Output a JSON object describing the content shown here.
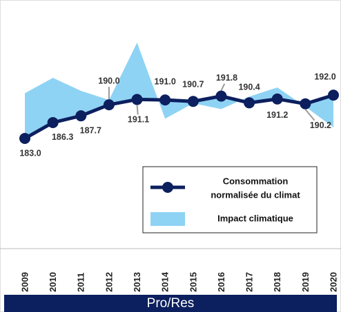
{
  "chart_data": {
    "type": "line",
    "caption": "Pro/Res",
    "categories": [
      "2009",
      "2010",
      "2011",
      "2012",
      "2013",
      "2014",
      "2015",
      "2016",
      "2017",
      "2018",
      "2019",
      "2020"
    ],
    "series": [
      {
        "name": "Consommation normalisée du climat",
        "color": "#0c1f5e",
        "values": [
          183.0,
          186.3,
          187.7,
          190.0,
          191.1,
          191.0,
          190.7,
          191.8,
          190.4,
          191.2,
          190.2,
          192.0
        ],
        "value_labels": [
          "183.0",
          "186.3",
          "187.7",
          "190.0",
          "191.1",
          "191.0",
          "190.7",
          "191.8",
          "190.4",
          "191.2",
          "190.2",
          "192.0"
        ]
      },
      {
        "name": "Impact climatique",
        "color": "#8fd3f4",
        "values": [
          192.4,
          195.6,
          192.9,
          191.0,
          202.9,
          187.1,
          190.3,
          189.1,
          191.7,
          193.6,
          189.6,
          185.3
        ]
      }
    ]
  }
}
